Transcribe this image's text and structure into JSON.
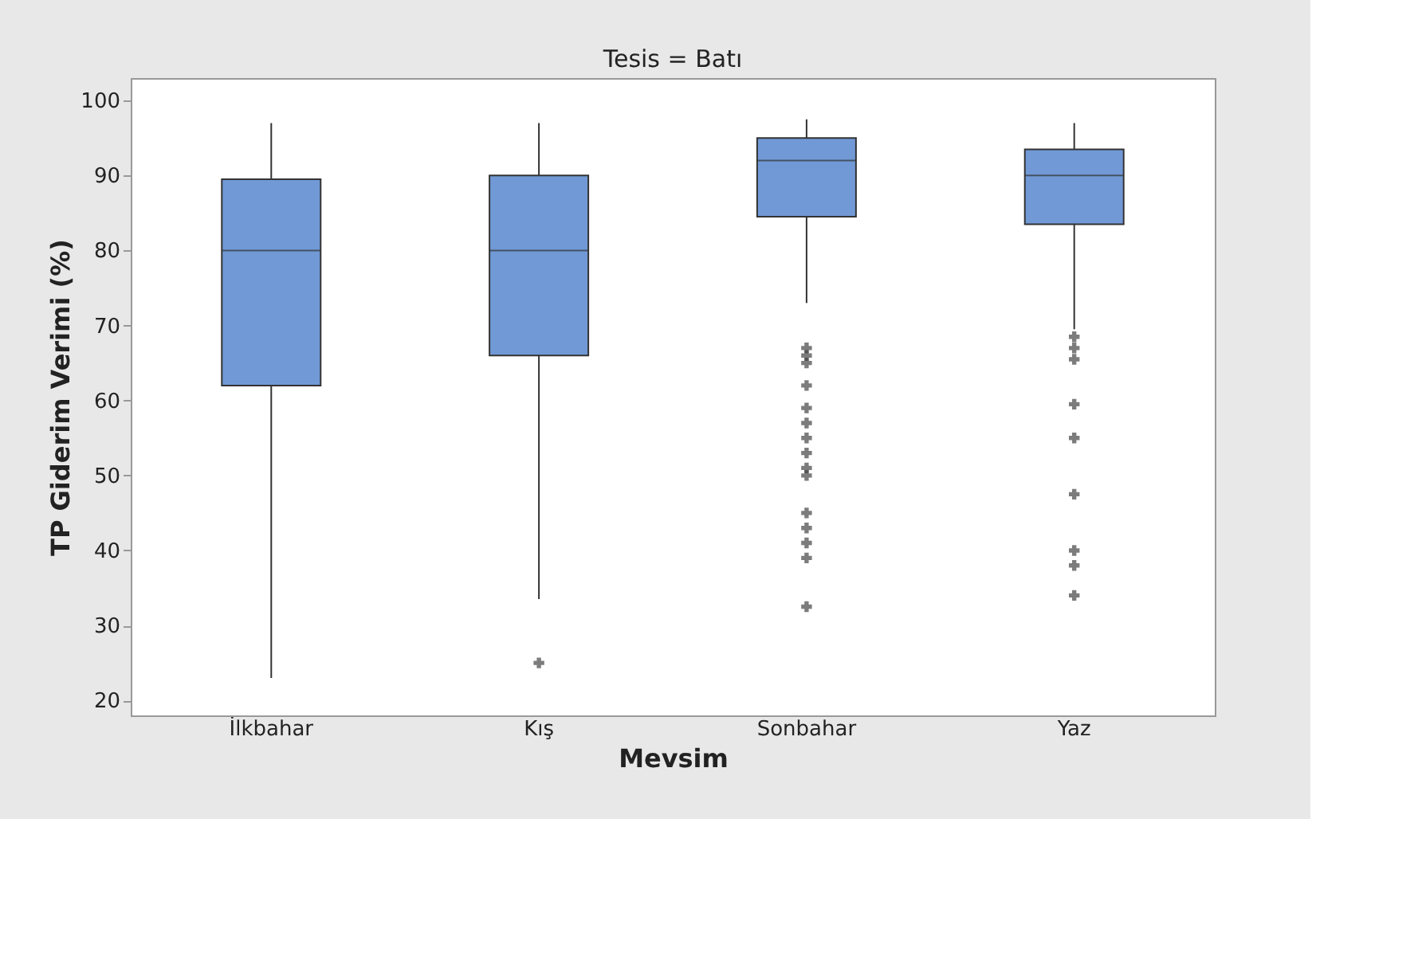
{
  "chart_data": {
    "type": "box",
    "title": "Tesis = Batı",
    "xlabel": "Mevsim",
    "ylabel": "TP Giderim Verimi (%)",
    "categories": [
      "İlkbahar",
      "Kış",
      "Sonbahar",
      "Yaz"
    ],
    "series": [
      {
        "color": "#7199d6",
        "boxes": [
          {
            "low": 23,
            "q1": 62,
            "median": 80,
            "q3": 89.5,
            "high": 97
          },
          {
            "low": 33.5,
            "q1": 66,
            "median": 80,
            "q3": 90,
            "high": 97,
            "outliers": [
              25
            ]
          },
          {
            "low": 73,
            "q1": 84.5,
            "median": 92,
            "q3": 95,
            "high": 97.5,
            "outliers": [
              67,
              66,
              65,
              62,
              59,
              57,
              55,
              53,
              51,
              50,
              45,
              43,
              41,
              39,
              32.5
            ]
          },
          {
            "low": 69.5,
            "q1": 83.5,
            "median": 90,
            "q3": 93.5,
            "high": 97,
            "outliers": [
              68.5,
              67,
              65.5,
              59.5,
              55,
              47.5,
              40,
              38,
              34
            ]
          }
        ]
      }
    ],
    "ylim": [
      18,
      103
    ],
    "yticks": [
      20,
      30,
      40,
      50,
      60,
      70,
      80,
      90,
      100
    ],
    "grid": false,
    "marker": "cross"
  }
}
